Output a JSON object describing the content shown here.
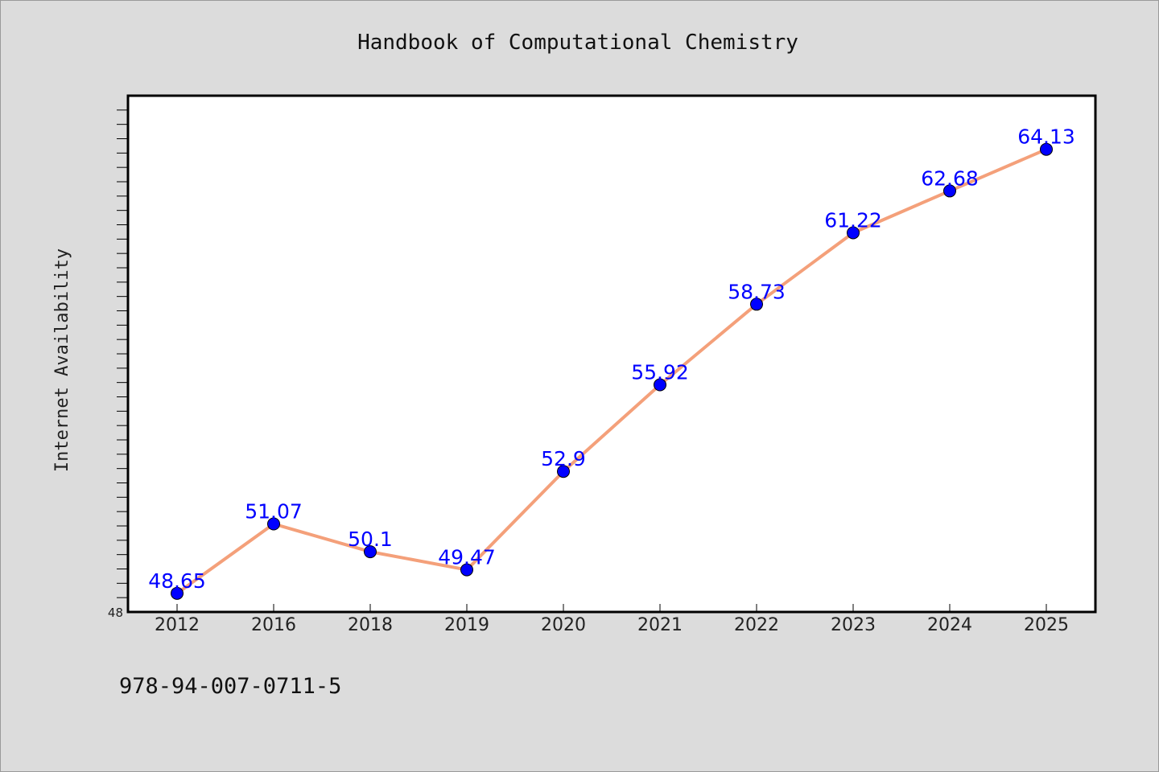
{
  "chart_data": {
    "type": "line",
    "title": "Handbook of Computational Chemistry",
    "ylabel": "Internet Availability",
    "xlabel": "",
    "categories": [
      "2012",
      "2016",
      "2018",
      "2019",
      "2020",
      "2021",
      "2022",
      "2023",
      "2024",
      "2025"
    ],
    "series": [
      {
        "values": [
          48.65,
          51.07,
          50.1,
          49.47,
          52.9,
          55.92,
          58.73,
          61.22,
          62.68,
          64.13
        ],
        "labels": [
          "48.65",
          "51.07",
          "50.1",
          "49.47",
          "52.9",
          "55.92",
          "58.73",
          "61.22",
          "62.68",
          "64.13"
        ],
        "line_color": "#f4a07a",
        "marker_color": "#0000ff"
      }
    ],
    "ylim": [
      48,
      66
    ],
    "ytick_labels": [
      "48"
    ],
    "grid": false,
    "legend": "none"
  },
  "footer": {
    "isbn": "978-94-007-0711-5"
  },
  "colors": {
    "background": "#dcdcdc",
    "plot_background": "#ffffff",
    "line": "#f4a07a",
    "marker": "#0000ff",
    "data_label": "#0000ff"
  }
}
